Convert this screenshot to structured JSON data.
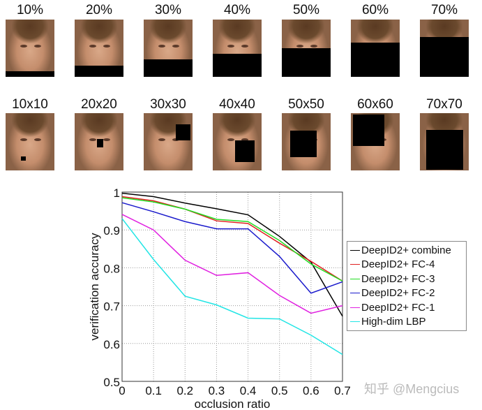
{
  "row1_labels": [
    "10%",
    "20%",
    "30%",
    "40%",
    "50%",
    "60%",
    "70%"
  ],
  "row2_labels": [
    "10x10",
    "20x20",
    "30x30",
    "40x40",
    "50x50",
    "60x60",
    "70x70"
  ],
  "watermark": "知乎 @Mengcius",
  "chart_data": {
    "type": "line",
    "title": "",
    "xlabel": "occlusion ratio",
    "ylabel": "verification accuracy",
    "x": [
      0,
      0.1,
      0.2,
      0.3,
      0.4,
      0.5,
      0.6,
      0.7
    ],
    "xlim": [
      0,
      0.7
    ],
    "ylim": [
      0.5,
      1
    ],
    "xticks": [
      "0",
      "0.1",
      "0.2",
      "0.3",
      "0.4",
      "0.5",
      "0.6",
      "0.7"
    ],
    "yticks": [
      "0.5",
      "0.6",
      "0.7",
      "0.8",
      "0.9",
      "1"
    ],
    "grid": true,
    "legend_position": "right",
    "series": [
      {
        "name": "DeepID2+ combine",
        "color": "#000000",
        "values": [
          0.997,
          0.988,
          0.971,
          0.956,
          0.94,
          0.883,
          0.815,
          0.672
        ]
      },
      {
        "name": "DeepID2+ FC-4",
        "color": "#e02020",
        "values": [
          0.988,
          0.977,
          0.955,
          0.924,
          0.917,
          0.865,
          0.817,
          0.765
        ]
      },
      {
        "name": "DeepID2+ FC-3",
        "color": "#22dd22",
        "values": [
          0.985,
          0.974,
          0.955,
          0.928,
          0.922,
          0.872,
          0.81,
          0.765
        ]
      },
      {
        "name": "DeepID2+ FC-2",
        "color": "#1a1acc",
        "values": [
          0.972,
          0.948,
          0.922,
          0.903,
          0.903,
          0.83,
          0.733,
          0.763
        ]
      },
      {
        "name": "DeepID2+ FC-1",
        "color": "#e020e0",
        "values": [
          0.941,
          0.9,
          0.82,
          0.78,
          0.787,
          0.727,
          0.68,
          0.7
        ]
      },
      {
        "name": "High-dim LBP",
        "color": "#22e5e5",
        "values": [
          0.93,
          0.822,
          0.725,
          0.702,
          0.667,
          0.665,
          0.622,
          0.571
        ]
      }
    ]
  }
}
